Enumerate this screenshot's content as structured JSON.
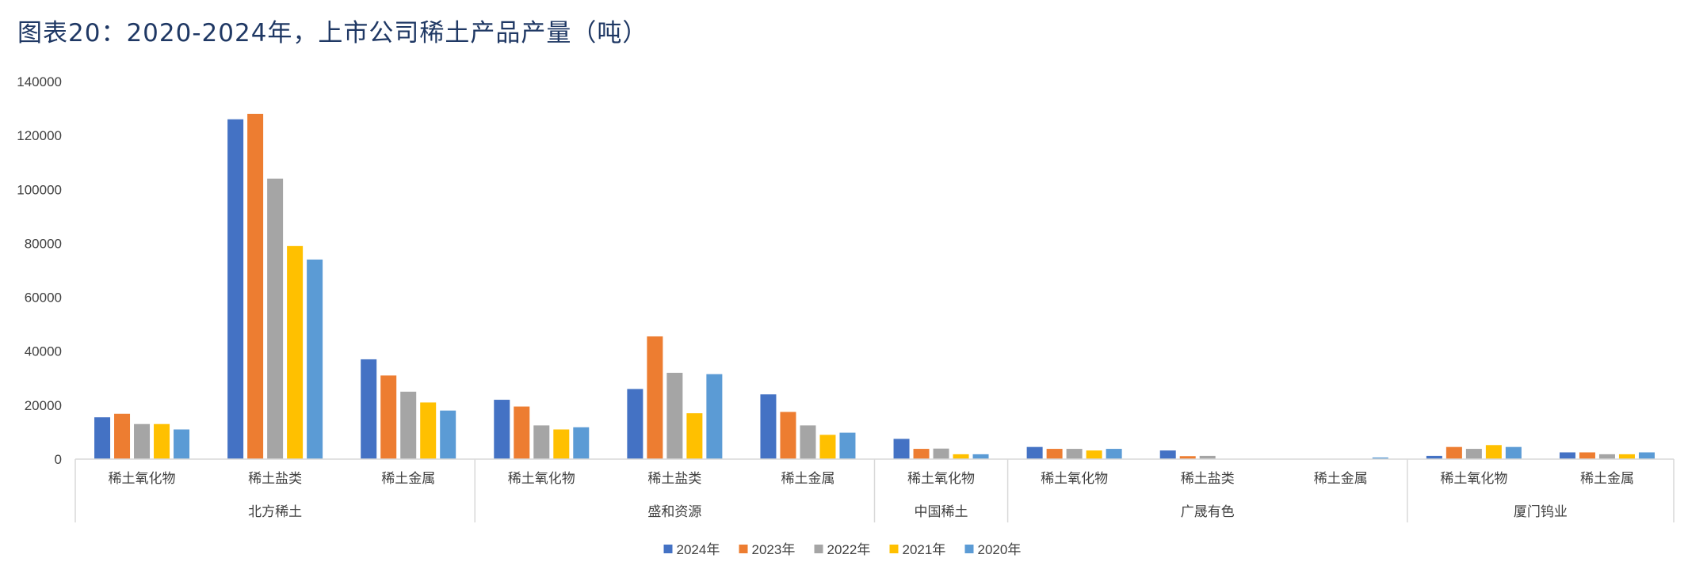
{
  "title": "图表20：2020-2024年，上市公司稀土产品产量（吨）",
  "chart_data": {
    "type": "bar",
    "ylim": [
      0,
      140000
    ],
    "yticks": [
      "0",
      "20000",
      "40000",
      "60000",
      "80000",
      "100000",
      "120000",
      "140000"
    ],
    "groups": [
      {
        "name": "北方稀土",
        "categories": [
          "稀土氧化物",
          "稀土盐类",
          "稀土金属"
        ]
      },
      {
        "name": "盛和资源",
        "categories": [
          "稀土氧化物",
          "稀土盐类",
          "稀土金属"
        ]
      },
      {
        "name": "中国稀土",
        "categories": [
          "稀土氧化物"
        ]
      },
      {
        "name": "广晟有色",
        "categories": [
          "稀土氧化物",
          "稀土盐类",
          "稀土金属"
        ]
      },
      {
        "name": "厦门钨业",
        "categories": [
          "稀土氧化物",
          "稀土金属"
        ]
      }
    ],
    "categories": [
      "北方稀土-稀土氧化物",
      "北方稀土-稀土盐类",
      "北方稀土-稀土金属",
      "盛和资源-稀土氧化物",
      "盛和资源-稀土盐类",
      "盛和资源-稀土金属",
      "中国稀土-稀土氧化物",
      "广晟有色-稀土氧化物",
      "广晟有色-稀土盐类",
      "广晟有色-稀土金属",
      "厦门钨业-稀土氧化物",
      "厦门钨业-稀土金属"
    ],
    "series": [
      {
        "name": "2024年",
        "color": "#4472c4",
        "values": [
          15500,
          126000,
          37000,
          22000,
          26000,
          24000,
          7500,
          4500,
          3200,
          0,
          1200,
          2500
        ]
      },
      {
        "name": "2023年",
        "color": "#ed7d31",
        "values": [
          16800,
          128000,
          31000,
          19500,
          45500,
          17500,
          3800,
          3800,
          1100,
          0,
          4500,
          2500
        ]
      },
      {
        "name": "2022年",
        "color": "#a5a5a5",
        "values": [
          13000,
          104000,
          25000,
          12500,
          32000,
          12500,
          3900,
          3800,
          1200,
          0,
          3800,
          1800
        ]
      },
      {
        "name": "2021年",
        "color": "#ffc000",
        "values": [
          13000,
          79000,
          21000,
          11000,
          17000,
          9000,
          1800,
          3200,
          0,
          0,
          5200,
          1800
        ]
      },
      {
        "name": "2020年",
        "color": "#5b9bd5",
        "values": [
          11000,
          74000,
          18000,
          11800,
          31500,
          9800,
          1800,
          3800,
          0,
          600,
          4500,
          2500
        ]
      }
    ],
    "legend_position": "bottom",
    "grid": false
  }
}
